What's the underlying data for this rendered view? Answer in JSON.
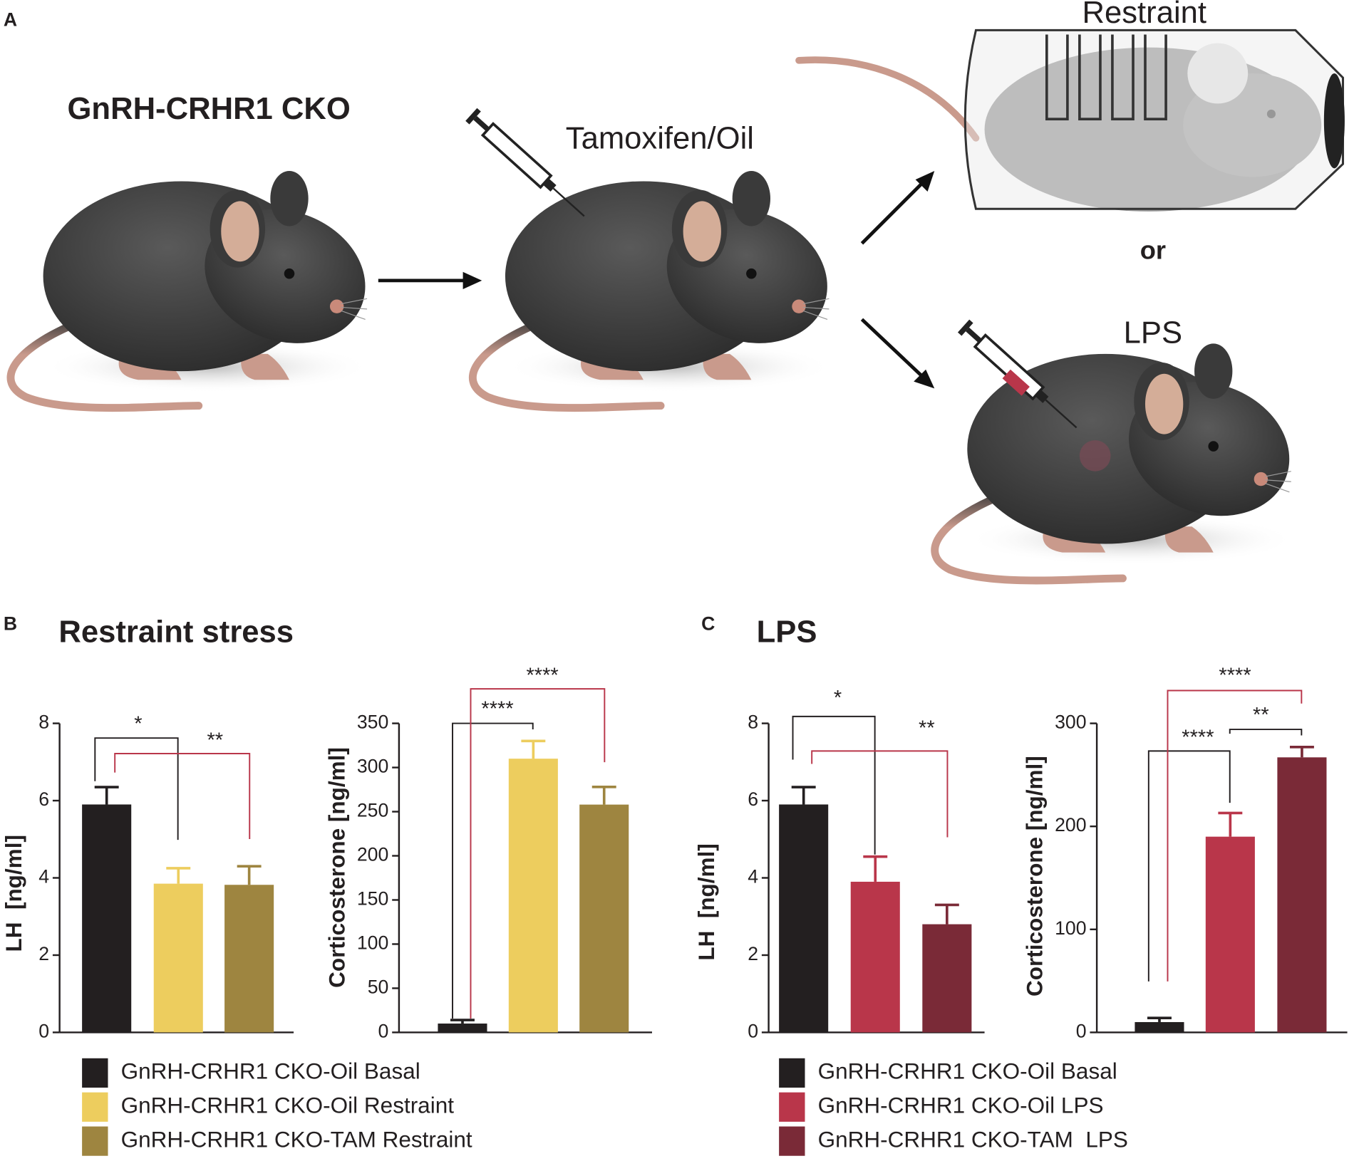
{
  "panel_a": {
    "label": "A",
    "strain": "GnRH-CRHR1 CKO",
    "treatment": "Tamoxifen/Oil",
    "outcomes": [
      "Restraint",
      "LPS"
    ],
    "conjunction": "or"
  },
  "panels": [
    {
      "label": "B",
      "title": "Restraint stress",
      "legend": [
        {
          "name": "GnRH-CRHR1 CKO-Oil Basal",
          "color": "#231f20"
        },
        {
          "name": "GnRH-CRHR1 CKO-Oil Restraint",
          "color": "#edcd5e"
        },
        {
          "name": "GnRH-CRHR1 CKO-TAM Restraint",
          "color": "#9e8540"
        }
      ]
    },
    {
      "label": "C",
      "title": "LPS",
      "legend": [
        {
          "name": "GnRH-CRHR1 CKO-Oil Basal",
          "color": "#231f20"
        },
        {
          "name": "GnRH-CRHR1 CKO-Oil LPS",
          "color": "#b9364a"
        },
        {
          "name": "GnRH-CRHR1 CKO-TAM  LPS",
          "color": "#7a2a37"
        }
      ]
    }
  ],
  "chart_data": [
    {
      "type": "bar",
      "ylabel": "LH  [ng/ml]",
      "values": [
        5.9,
        3.85,
        3.82
      ],
      "errors": [
        0.45,
        0.4,
        0.48
      ],
      "colors": [
        "#231f20",
        "#edcd5e",
        "#9e8540"
      ],
      "ylim": [
        0,
        8
      ],
      "yticks": [
        0,
        2,
        4,
        6,
        8
      ],
      "significance": [
        {
          "text": "*",
          "color": "#231f20"
        },
        {
          "text": "**",
          "color": "#b9364a"
        }
      ]
    },
    {
      "type": "bar",
      "ylabel": "Corticosterone [ng/ml]",
      "values": [
        10,
        310,
        258
      ],
      "errors": [
        4,
        20,
        20
      ],
      "colors": [
        "#231f20",
        "#edcd5e",
        "#9e8540"
      ],
      "ylim": [
        0,
        350
      ],
      "yticks": [
        0,
        50,
        100,
        150,
        200,
        250,
        300,
        350
      ],
      "significance": [
        {
          "text": "****",
          "color": "#231f20"
        },
        {
          "text": "****",
          "color": "#b9364a"
        }
      ]
    },
    {
      "type": "bar",
      "ylabel": "LH  [ng/ml]",
      "values": [
        5.9,
        3.9,
        2.8
      ],
      "errors": [
        0.45,
        0.65,
        0.5
      ],
      "colors": [
        "#231f20",
        "#b9364a",
        "#7a2a37"
      ],
      "ylim": [
        0,
        8
      ],
      "yticks": [
        0,
        2,
        4,
        6,
        8
      ],
      "significance": [
        {
          "text": "*",
          "color": "#231f20"
        },
        {
          "text": "**",
          "color": "#b9364a"
        }
      ]
    },
    {
      "type": "bar",
      "ylabel": "Corticosterone [ng/ml]",
      "values": [
        10,
        190,
        267
      ],
      "errors": [
        4,
        23,
        10
      ],
      "colors": [
        "#231f20",
        "#b9364a",
        "#7a2a37"
      ],
      "ylim": [
        0,
        300
      ],
      "yticks": [
        0,
        100,
        200,
        300
      ],
      "significance": [
        {
          "text": "****",
          "color": "#231f20"
        },
        {
          "text": "**",
          "color": "#231f20"
        },
        {
          "text": "****",
          "color": "#b9364a"
        }
      ]
    }
  ]
}
